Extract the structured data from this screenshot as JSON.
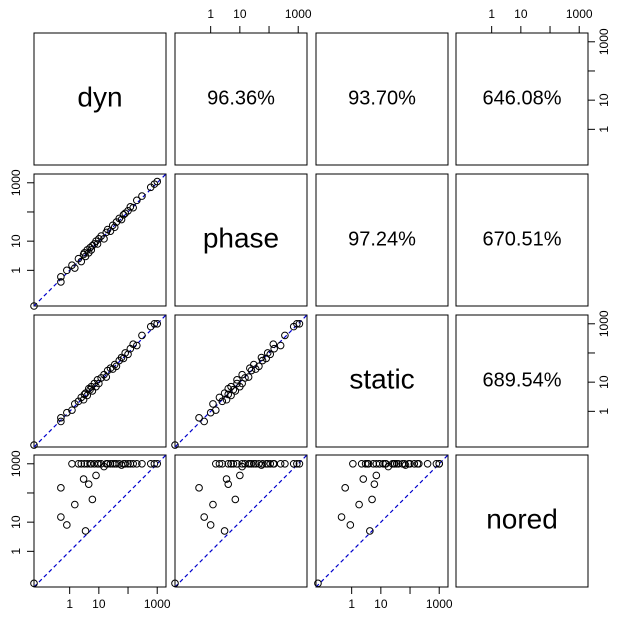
{
  "chart_data": {
    "type": "scatter-matrix",
    "variables": [
      "dyn",
      "phase",
      "static",
      "nored"
    ],
    "series": [
      {
        "name": "dyn",
        "values": [
          0.06,
          0.5,
          0.5,
          0.8,
          1.2,
          1.5,
          2,
          2.5,
          3,
          3.2,
          3.5,
          4,
          4.5,
          5,
          5.5,
          6,
          7,
          8,
          9,
          10,
          12,
          15,
          18,
          20,
          25,
          30,
          35,
          40,
          50,
          60,
          70,
          80,
          100,
          120,
          150,
          200,
          300,
          600,
          800,
          1000
        ]
      },
      {
        "name": "phase",
        "values": [
          0.06,
          0.6,
          0.4,
          1,
          1.5,
          1.2,
          2.5,
          2,
          3.5,
          4,
          3,
          5,
          4,
          6,
          5,
          7,
          8,
          10,
          8,
          12,
          15,
          12,
          20,
          25,
          22,
          35,
          30,
          45,
          60,
          55,
          80,
          90,
          110,
          150,
          140,
          250,
          350,
          700,
          900,
          1100
        ]
      },
      {
        "name": "static",
        "values": [
          0.07,
          0.45,
          0.6,
          0.9,
          1.1,
          1.8,
          2.2,
          3,
          2.5,
          3.8,
          4.2,
          3.5,
          6,
          5.5,
          7,
          5,
          9,
          7,
          12,
          9,
          14,
          18,
          15,
          25,
          30,
          28,
          40,
          35,
          55,
          70,
          65,
          100,
          90,
          140,
          200,
          180,
          400,
          800,
          1000,
          1000
        ]
      },
      {
        "name": "nored",
        "values": [
          0.08,
          15,
          150,
          8,
          1000,
          40,
          1000,
          1000,
          300,
          1000,
          5,
          1000,
          200,
          1000,
          1000,
          60,
          1000,
          400,
          1000,
          1000,
          1000,
          800,
          1000,
          1000,
          1000,
          1000,
          1000,
          1000,
          1000,
          900,
          1000,
          1000,
          1000,
          1000,
          1000,
          1000,
          1000,
          1000,
          1000,
          1000
        ]
      }
    ],
    "pair_labels": [
      {
        "value": 96.36,
        "label": "96.36%"
      },
      {
        "value": 93.7,
        "label": "93.70%"
      },
      {
        "value": 646.08,
        "label": "646.08%"
      },
      {
        "value": 97.24,
        "label": "97.24%"
      },
      {
        "value": 670.51,
        "label": "670.51%"
      },
      {
        "value": 689.54,
        "label": "689.54%"
      }
    ],
    "log_scale": true,
    "lim": [
      0.06,
      2000
    ],
    "ticks": [
      1,
      10,
      1000
    ],
    "unlabeled_ticks": [
      100
    ],
    "point_color": "#000000",
    "reference_line_color": "#0000cc"
  }
}
